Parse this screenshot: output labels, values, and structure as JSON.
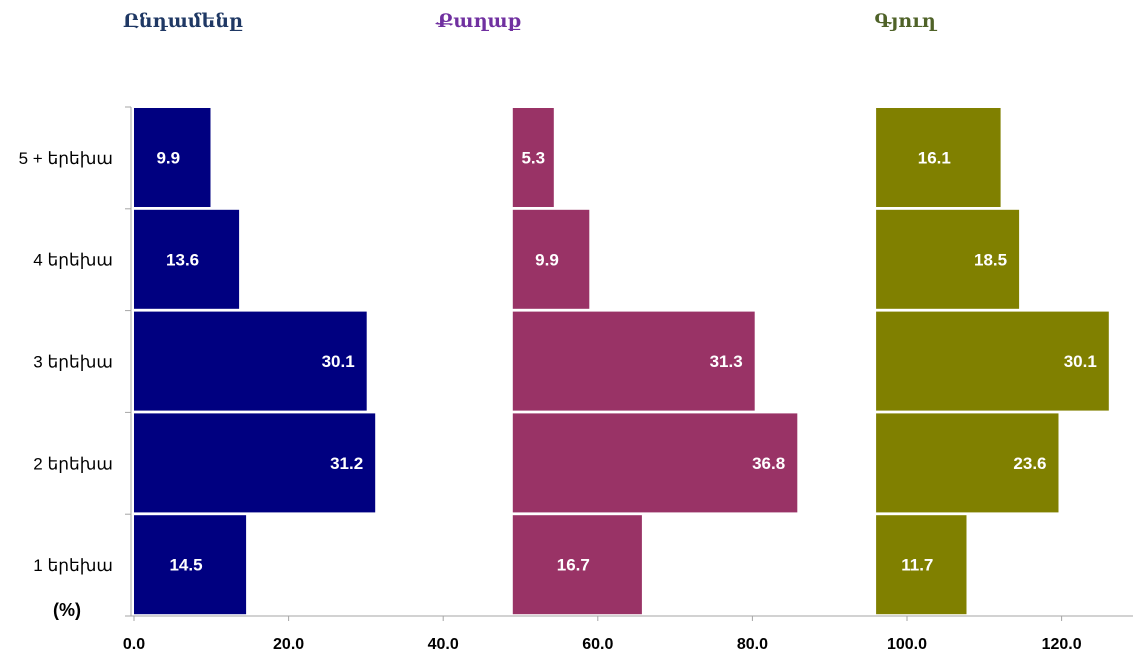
{
  "chart_data": {
    "type": "bar",
    "orientation": "horizontal",
    "layout": "side-by-side panels",
    "unit_label": "(%)",
    "categories": [
      "1 երեխա",
      "2 երեխա",
      "3 երեխա",
      "4 երեխա",
      "5 + երեխա"
    ],
    "x_ticks": [
      "0.0",
      "20.0",
      "40.0",
      "60.0",
      "80.0",
      "100.0",
      "120.0"
    ],
    "xlim": [
      0,
      130
    ],
    "grid": false,
    "series": [
      {
        "name": "Ընդամենը",
        "color": "#000080",
        "values": [
          14.5,
          31.2,
          30.1,
          13.6,
          9.9
        ]
      },
      {
        "name": "Քաղաք",
        "color": "#993366",
        "values": [
          16.7,
          36.8,
          31.3,
          9.9,
          5.3
        ]
      },
      {
        "name": "Գյուղ",
        "color": "#808000",
        "values": [
          11.7,
          23.6,
          30.1,
          18.5,
          16.1
        ]
      }
    ],
    "title_colors": [
      "#1f3864",
      "#7030a0",
      "#4f6228"
    ]
  }
}
